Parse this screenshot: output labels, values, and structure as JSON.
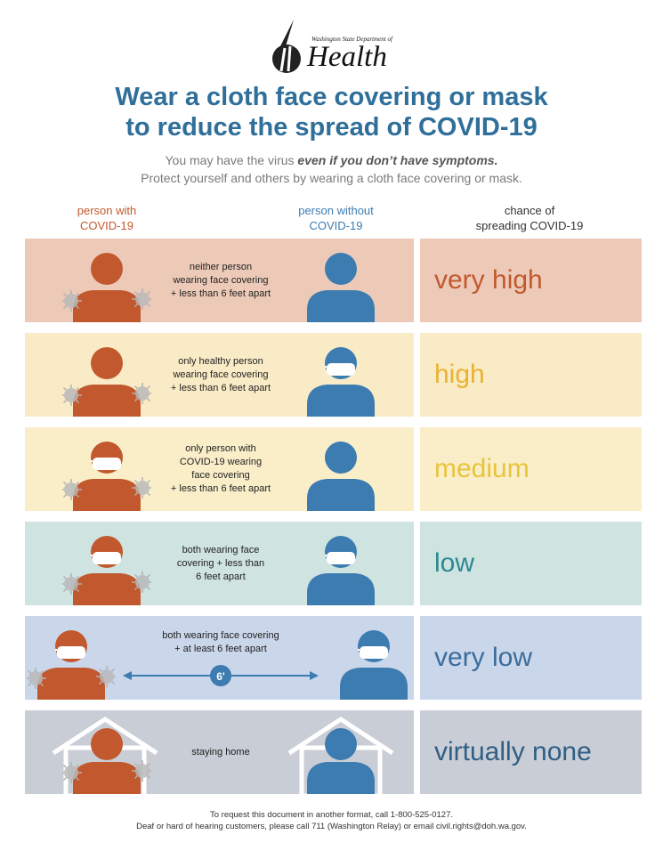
{
  "logo": {
    "org_small": "Washington State Department of",
    "org_big": "Health"
  },
  "title": {
    "line1": "Wear a cloth face covering or mask",
    "line2": "to reduce the spread of COVID-19"
  },
  "subtitle": {
    "line1_prefix": "You may have the virus ",
    "line1_emph": "even if you don’t have symptoms.",
    "line2": "Protect yourself and others by wearing a cloth face covering or mask."
  },
  "columns": {
    "with": {
      "line1": "person with",
      "line2": "COVID-19"
    },
    "without": {
      "line1": "person without",
      "line2": "COVID-19"
    },
    "chance": {
      "line1": "chance of",
      "line2": "spreading COVID-19"
    }
  },
  "colors": {
    "infected": "#c2592e",
    "healthy": "#3d7cb0",
    "row_bg": [
      "#edcab8",
      "#faebc7",
      "#faeec9",
      "#cfe3e0",
      "#cad6ea",
      "#c9cdd5"
    ],
    "risk_text": [
      "#c2592e",
      "#e9b233",
      "#e9c43a",
      "#2b8a92",
      "#3a6d9e",
      "#2f5f85"
    ]
  },
  "rows": [
    {
      "desc": [
        "neither person",
        "wearing face covering",
        "+ less than 6 feet apart"
      ],
      "risk": "very high",
      "infected_mask": false,
      "healthy_mask": false
    },
    {
      "desc": [
        "only healthy person",
        "wearing face covering",
        "+ less than 6 feet apart"
      ],
      "risk": "high",
      "infected_mask": false,
      "healthy_mask": true
    },
    {
      "desc": [
        "only person with",
        "COVID-19 wearing",
        "face covering",
        "+ less than 6 feet apart"
      ],
      "risk": "medium",
      "infected_mask": true,
      "healthy_mask": false
    },
    {
      "desc": [
        "both wearing face",
        "covering + less than",
        "6 feet apart"
      ],
      "risk": "low",
      "infected_mask": true,
      "healthy_mask": true
    },
    {
      "desc": [
        "both wearing face covering",
        "+ at least 6 feet apart"
      ],
      "risk": "very low",
      "distance_label": "6'",
      "infected_mask": true,
      "healthy_mask": true
    },
    {
      "desc": [
        "staying home"
      ],
      "risk": "virtually none",
      "infected_mask": false,
      "healthy_mask": false
    }
  ],
  "footer": {
    "line1": "To request this document in another format, call 1-800-525-0127.",
    "line2": "Deaf or hard of hearing customers, please call 711 (Washington Relay) or email civil.rights@doh.wa.gov."
  }
}
